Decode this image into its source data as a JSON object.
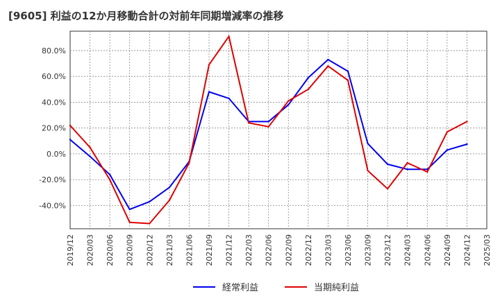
{
  "chart_data": {
    "type": "line",
    "title": "[9605]  利益の12か月移動合計の対前年同期増減率の推移",
    "xlabel": "",
    "ylabel": "",
    "categories": [
      "2019/12",
      "2020/03",
      "2020/06",
      "2020/09",
      "2020/12",
      "2021/03",
      "2021/06",
      "2021/09",
      "2021/12",
      "2022/03",
      "2022/06",
      "2022/09",
      "2022/12",
      "2023/03",
      "2023/06",
      "2023/09",
      "2023/12",
      "2024/03",
      "2024/06",
      "2024/09",
      "2024/12",
      "2025/03"
    ],
    "y_ticks": [
      "80.0%",
      "60.0%",
      "40.0%",
      "20.0%",
      "0.0%",
      "-20.0%",
      "-40.0%"
    ],
    "y_tick_values": [
      80,
      60,
      40,
      20,
      0,
      -20,
      -40
    ],
    "ylim": [
      -58,
      95
    ],
    "grid": true,
    "legend_position": "bottom-center",
    "series": [
      {
        "name": "経常利益",
        "color": "#0000ee",
        "values": [
          11,
          -2,
          -16,
          -43,
          -37,
          -26,
          -6,
          48,
          43,
          25,
          25,
          38,
          59,
          73,
          64,
          8,
          -8,
          -12,
          -12,
          3,
          7.5,
          null
        ]
      },
      {
        "name": "当期純利益",
        "color": "#dd0000",
        "values": [
          22,
          5,
          -20,
          -53,
          -54,
          -36,
          -7,
          69,
          91,
          24,
          21,
          41,
          50,
          68,
          57,
          -13,
          -27,
          -7,
          -14,
          17,
          25,
          null
        ]
      }
    ]
  }
}
